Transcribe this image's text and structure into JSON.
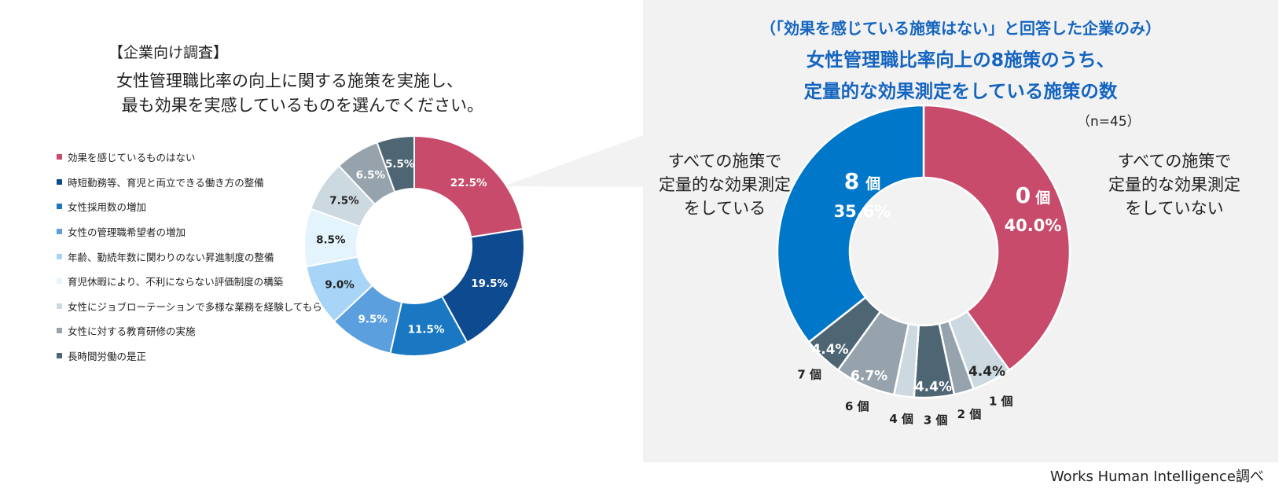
{
  "left": {
    "survey_tag": "【企業向け調査】",
    "question": "女性管理職比率の向上に関する施策を実施し、\n 最も効果を実感しているものを選んでください。",
    "chart_data": {
      "type": "pie",
      "categories": [
        "効果を感じているものはない",
        "時短勤務等、育児と両立できる働き方の整備",
        "女性採用数の増加",
        "女性の管理職希望者の増加",
        "年齢、勤続年数に関わりのない昇進制度の整備",
        "育児休暇により、不利にならない評価制度の構築",
        "女性にジョブローテーションで多様な業務を経験してもらう",
        "女性に対する教育研修の実施",
        "長時間労働の是正"
      ],
      "values": [
        22.5,
        19.5,
        11.5,
        9.5,
        9.0,
        8.5,
        7.5,
        6.5,
        5.5
      ],
      "labels": [
        "22.5%",
        "19.5%",
        "11.5%",
        "9.5%",
        "9.0%",
        "8.5%",
        "7.5%",
        "6.5%",
        "5.5%"
      ],
      "colors": [
        "#c84b6b",
        "#0d4a8f",
        "#1a78c2",
        "#5b9fdf",
        "#a7d4f7",
        "#e4f4fc",
        "#cdd9e0",
        "#96a3ad",
        "#4e6573"
      ],
      "label_colors": [
        "#ffffff",
        "#ffffff",
        "#ffffff",
        "#ffffff",
        "#222222",
        "#222222",
        "#222222",
        "#ffffff",
        "#ffffff"
      ]
    }
  },
  "right": {
    "subtitle": "（「効果を感じている施策はない」と回答した企業のみ）",
    "title": "女性管理職比率向上の8施策のうち、\n定量的な効果測定をしている施策の数",
    "n": "（n=45）",
    "left_label": "すべての施策で\n定量的な効果測定\nをしている",
    "right_label": "すべての施策で\n定量的な効果測定\nをしていない",
    "chart_data": {
      "type": "pie",
      "categories": [
        "0 個",
        "1 個",
        "2 個",
        "3 個",
        "4 個",
        "6 個",
        "7 個",
        "8 個"
      ],
      "values": [
        40.0,
        4.4,
        2.2,
        4.4,
        2.2,
        6.7,
        4.4,
        35.6
      ],
      "pct_labels": [
        "40.0%",
        "4.4%",
        "",
        "4.4%",
        "",
        "6.7%",
        "4.4%",
        "35.6%"
      ],
      "colors": [
        "#c84b6b",
        "#cdd9e0",
        "#96a3ad",
        "#4e6573",
        "#cdd9e0",
        "#96a3ad",
        "#4e6573",
        "#0077c8"
      ],
      "pct_label_colors": [
        "#ffffff",
        "#222222",
        "#ffffff",
        "#ffffff",
        "#222222",
        "#ffffff",
        "#ffffff",
        "#ffffff"
      ],
      "big_labels": {
        "zero_num": "0",
        "zero_unit": "個",
        "eight_num": "8",
        "eight_unit": "個"
      }
    }
  },
  "source": "Works Human Intelligence調べ"
}
